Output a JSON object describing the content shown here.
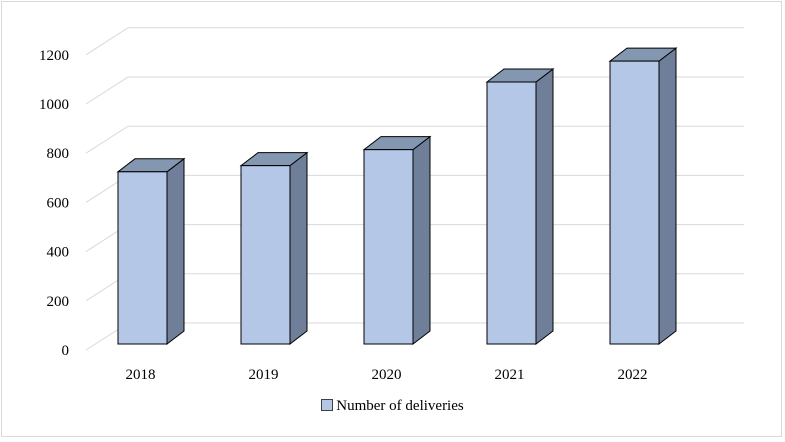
{
  "chart_data": {
    "type": "bar",
    "style": "3d-column",
    "categories": [
      "2018",
      "2019",
      "2020",
      "2021",
      "2022"
    ],
    "series": [
      {
        "name": "Number of deliveries",
        "values": [
          700,
          725,
          790,
          1065,
          1150
        ]
      }
    ],
    "ylim": [
      0,
      1200
    ],
    "yticks": [
      "0",
      "200",
      "400",
      "600",
      "800",
      "1000",
      "1200"
    ],
    "grid": true,
    "legend_position": "bottom",
    "colors": {
      "front": "#b4c7e7",
      "side": "#707f99",
      "top": "#8497b0",
      "outline": "#000000",
      "grid": "#d9d9d9"
    }
  }
}
